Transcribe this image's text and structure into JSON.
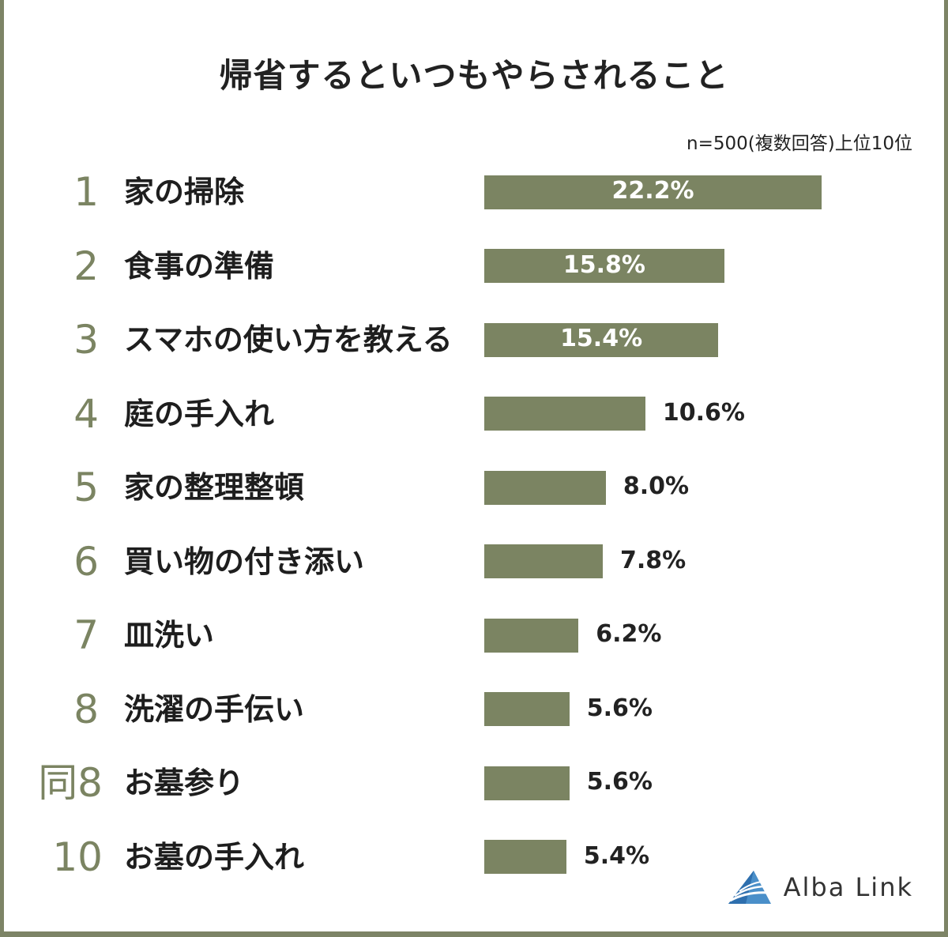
{
  "title": "帰省するといつもやらされること",
  "note": "n=500(複数回答)上位10位",
  "brand": {
    "name": "Alba Link"
  },
  "colors": {
    "bar": "#7b8462",
    "rank": "#7b8462"
  },
  "chart_data": {
    "type": "bar",
    "orientation": "horizontal",
    "categories": [
      "家の掃除",
      "食事の準備",
      "スマホの使い方を教える",
      "庭の手入れ",
      "家の整理整頓",
      "買い物の付き添い",
      "皿洗い",
      "洗濯の手伝い",
      "お墓参り",
      "お墓の手入れ"
    ],
    "ranks": [
      "1",
      "2",
      "3",
      "4",
      "5",
      "6",
      "7",
      "8",
      "同8",
      "10"
    ],
    "values": [
      22.2,
      15.8,
      15.4,
      10.6,
      8.0,
      7.8,
      6.2,
      5.6,
      5.6,
      5.4
    ],
    "value_labels": [
      "22.2%",
      "15.8%",
      "15.4%",
      "10.6%",
      "8.0%",
      "7.8%",
      "6.2%",
      "5.6%",
      "5.6%",
      "5.4%"
    ],
    "unit": "%"
  }
}
